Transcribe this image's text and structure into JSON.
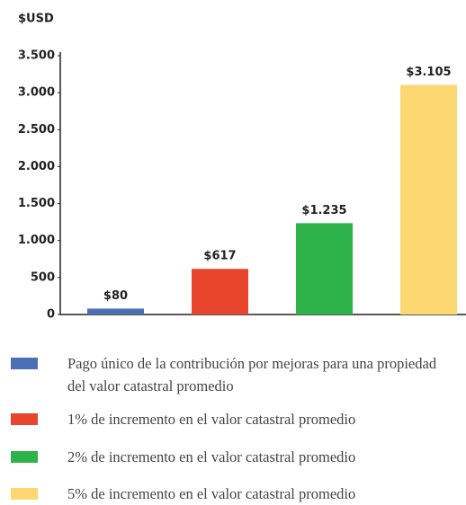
{
  "chart_data": {
    "type": "bar",
    "y_label": "$USD",
    "categories": [
      "Pago único de la contribución por mejoras para una propiedad del valor catastral promedio",
      "1% de incremento en el valor catastral promedio",
      "2% de incremento en el valor catastral promedio",
      "5% de incremento en el valor catastral promedio"
    ],
    "values": [
      80,
      617,
      1235,
      3105
    ],
    "value_labels": [
      "$80",
      "$617",
      "$1.235",
      "$3.105"
    ],
    "colors": [
      "#4a6fb5",
      "#e8452c",
      "#2db34a",
      "#fdd772"
    ],
    "ylim": [
      0,
      3500
    ],
    "yticks": [
      0,
      500,
      {
        "value": 1000,
        "label": "1.000"
      },
      {
        "value": 1500,
        "label": "1.500"
      },
      {
        "value": 2000,
        "label": "2.000"
      },
      {
        "value": 2500,
        "label": "2.500"
      },
      {
        "value": 3000,
        "label": "3.000"
      },
      {
        "value": 3500,
        "label": "3.500"
      }
    ],
    "grid": false
  }
}
